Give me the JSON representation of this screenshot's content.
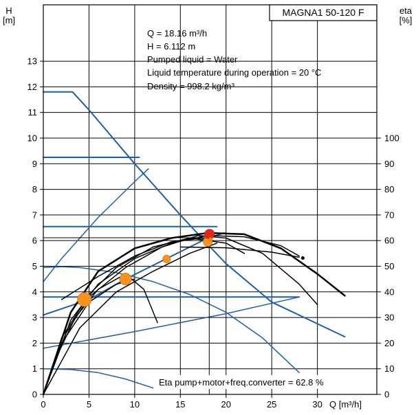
{
  "chart_data": {
    "type": "line",
    "title": "MAGNA1 50-120 F",
    "y_axis_label_line1": "H",
    "y_axis_label_line2": "[m]",
    "y2_axis_label_line1": "eta",
    "y2_axis_label_line2": "[%]",
    "x_axis_label": "Q [m³/h]",
    "x_ticks": [
      0,
      5,
      10,
      15,
      20,
      25,
      30
    ],
    "y_ticks": [
      0,
      1,
      2,
      3,
      4,
      5,
      6,
      7,
      8,
      9,
      10,
      11,
      12,
      13
    ],
    "y2_ticks": [
      0,
      10,
      20,
      30,
      40,
      50,
      60,
      70,
      80,
      90,
      100
    ],
    "xlim": [
      0,
      36.5
    ],
    "ylim": [
      0,
      15.2
    ],
    "y2lim": [
      0,
      152
    ],
    "info_lines": [
      "Q = 18.16 m³/h",
      "H = 6.112 m",
      "Pumped liquid = Water",
      "Liquid temperature during operation = 20 °C",
      "Density = 998.2 kg/m³"
    ],
    "eta_label": "Eta pump+motor+freq.converter = 62.8 %",
    "operating_point": {
      "q": 18.16,
      "h": 6.112
    },
    "colors": {
      "blue": "#1f5fa0",
      "black": "#000000",
      "marker_orange": "#f7941d",
      "marker_red": "#e8231a"
    },
    "series": [
      {
        "axis": "h",
        "color": "blue",
        "width": 2,
        "points": [
          [
            0,
            11.8
          ],
          [
            3.2,
            11.8
          ],
          [
            5,
            11.1
          ],
          [
            10,
            9.0
          ],
          [
            15,
            7.0
          ],
          [
            18,
            5.85
          ],
          [
            20,
            5.1
          ],
          [
            25,
            3.6
          ],
          [
            33,
            2.25
          ]
        ]
      },
      {
        "axis": "h",
        "color": "blue",
        "width": 2,
        "points": [
          [
            0,
            9.25
          ],
          [
            10.5,
            9.25
          ]
        ]
      },
      {
        "axis": "h",
        "color": "blue",
        "width": 2,
        "points": [
          [
            0,
            6.55
          ],
          [
            19,
            6.55
          ]
        ]
      },
      {
        "axis": "h",
        "color": "blue",
        "width": 2,
        "points": [
          [
            0,
            3.8
          ],
          [
            28,
            3.8
          ]
        ]
      },
      {
        "axis": "h",
        "color": "blue",
        "width": 2,
        "points": [
          [
            0,
            3.1
          ],
          [
            5,
            3.7
          ],
          [
            9,
            4.5
          ],
          [
            13.5,
            5.3
          ],
          [
            18,
            6.1
          ],
          [
            19.8,
            6.3
          ]
        ]
      },
      {
        "axis": "h",
        "color": "blue",
        "width": 1.5,
        "points": [
          [
            0,
            4.4
          ],
          [
            2,
            5.3
          ],
          [
            6,
            6.9
          ],
          [
            10,
            8.3
          ],
          [
            11.5,
            8.8
          ]
        ]
      },
      {
        "axis": "h",
        "color": "blue",
        "width": 1.5,
        "points": [
          [
            0,
            4.95
          ],
          [
            2,
            4.98
          ],
          [
            4,
            4.95
          ],
          [
            8,
            4.75
          ],
          [
            12,
            4.4
          ],
          [
            16,
            3.9
          ],
          [
            20,
            3.2
          ],
          [
            24,
            2.2
          ],
          [
            28,
            0.85
          ]
        ]
      },
      {
        "axis": "h",
        "color": "blue",
        "width": 1.5,
        "points": [
          [
            0,
            1.8
          ],
          [
            10,
            2.45
          ],
          [
            20,
            3.15
          ],
          [
            28,
            3.8
          ]
        ]
      },
      {
        "axis": "h",
        "color": "blue",
        "width": 1.5,
        "points": [
          [
            0,
            1.0
          ],
          [
            3,
            0.97
          ],
          [
            6,
            0.85
          ],
          [
            9,
            0.6
          ],
          [
            12,
            0.25
          ]
        ]
      },
      {
        "axis": "h",
        "color": "black",
        "width": 2.5,
        "points": [
          [
            0,
            0
          ],
          [
            3,
            3.2
          ],
          [
            6,
            4.8
          ],
          [
            10,
            5.7
          ],
          [
            14,
            6.1
          ],
          [
            18,
            6.3
          ],
          [
            22,
            6.25
          ],
          [
            26,
            5.7
          ],
          [
            30,
            4.7
          ],
          [
            33,
            3.85
          ]
        ]
      },
      {
        "axis": "h",
        "color": "black",
        "width": 1.5,
        "points": [
          [
            0,
            0
          ],
          [
            2,
            2.2
          ],
          [
            5,
            3.9
          ],
          [
            8,
            4.95
          ],
          [
            12,
            5.75
          ],
          [
            16,
            6.1
          ],
          [
            20,
            5.9
          ],
          [
            22,
            5.5
          ]
        ]
      },
      {
        "axis": "h",
        "color": "black",
        "width": 1.5,
        "points": [
          [
            0,
            0
          ],
          [
            2.5,
            2.4
          ],
          [
            5,
            3.8
          ],
          [
            9,
            4.95
          ],
          [
            13,
            5.75
          ],
          [
            17,
            6.2
          ],
          [
            20,
            6.1
          ],
          [
            24,
            5.5
          ],
          [
            28,
            4.3
          ],
          [
            30,
            3.5
          ]
        ]
      },
      {
        "axis": "h",
        "color": "black",
        "width": 1.5,
        "points": [
          [
            0,
            0
          ],
          [
            3,
            2.9
          ],
          [
            6,
            4.3
          ],
          [
            10,
            5.3
          ],
          [
            14,
            5.9
          ],
          [
            18,
            6.2
          ],
          [
            22,
            6.15
          ],
          [
            26,
            5.8
          ],
          [
            28,
            5.4
          ]
        ]
      },
      {
        "axis": "h",
        "color": "black",
        "width": 1.5,
        "points": [
          [
            0,
            0
          ],
          [
            2,
            2.0
          ],
          [
            5,
            3.6
          ],
          [
            8,
            4.3
          ],
          [
            10,
            4.5
          ]
        ]
      },
      {
        "axis": "h",
        "color": "black",
        "width": 1.5,
        "points": [
          [
            0,
            0
          ],
          [
            1.5,
            1.5
          ],
          [
            3.5,
            3.0
          ],
          [
            6,
            4.1
          ],
          [
            9,
            4.7
          ],
          [
            11,
            4.1
          ],
          [
            12.5,
            2.8
          ]
        ]
      },
      {
        "axis": "h",
        "color": "black",
        "width": 1.5,
        "points": [
          [
            2,
            3.7
          ],
          [
            6,
            4.6
          ],
          [
            10,
            5.4
          ],
          [
            14,
            5.95
          ],
          [
            18,
            6.12
          ]
        ]
      },
      {
        "axis": "h",
        "color": "black",
        "width": 1.5,
        "points": [
          [
            15,
            5.75
          ],
          [
            20,
            5.72
          ],
          [
            25,
            5.55
          ],
          [
            28,
            5.35
          ]
        ]
      },
      {
        "axis": "h",
        "color": "black",
        "width": 1.5,
        "points": [
          [
            0,
            0
          ],
          [
            4,
            2.6
          ],
          [
            8,
            4.0
          ],
          [
            12,
            4.8
          ],
          [
            16,
            5.5
          ],
          [
            19,
            5.9
          ]
        ]
      }
    ],
    "markers": [
      {
        "q": 4.5,
        "h": 3.7,
        "r": 10,
        "color": "marker_orange"
      },
      {
        "q": 9.0,
        "h": 4.5,
        "r": 8.5,
        "color": "marker_orange"
      },
      {
        "q": 13.5,
        "h": 5.28,
        "r": 5.5,
        "color": "marker_orange"
      },
      {
        "q": 18.0,
        "h": 5.95,
        "r": 6.5,
        "color": "marker_orange"
      },
      {
        "q": 18.2,
        "h": 6.25,
        "r": 7,
        "color": "marker_red"
      },
      {
        "q": 18.3,
        "h": 6.05,
        "r": 2.5,
        "color": "marker_orange"
      },
      {
        "q": 28.4,
        "h": 5.32,
        "r": 2.5,
        "color": "black"
      }
    ]
  }
}
